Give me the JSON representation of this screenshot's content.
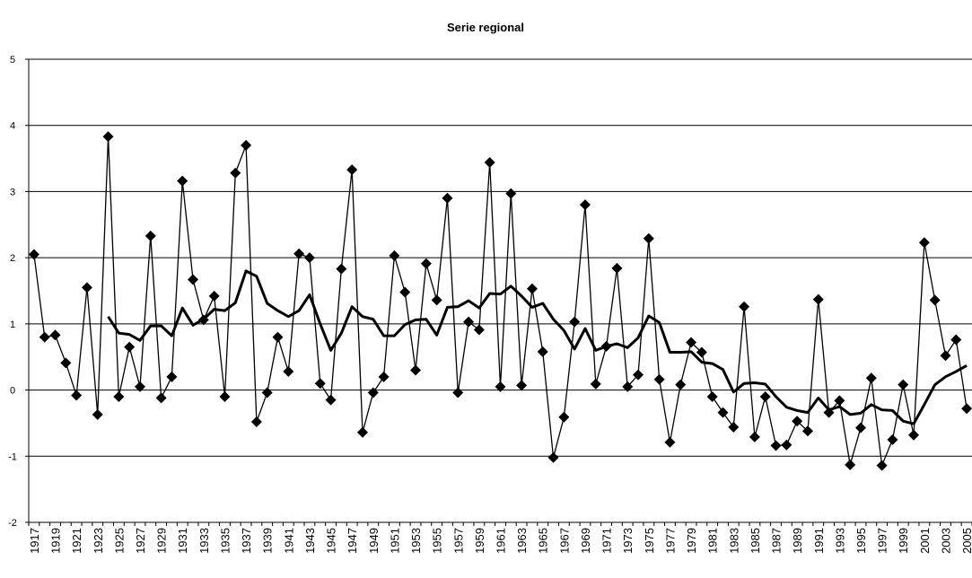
{
  "chart_data": {
    "type": "line",
    "title": "Serie regional",
    "categories": [
      "1917",
      null,
      "1919",
      null,
      "1921",
      null,
      "1923",
      null,
      "1925",
      null,
      "1927",
      null,
      "1929",
      null,
      "1931",
      null,
      "1933",
      null,
      "1935",
      null,
      "1937",
      null,
      "1939",
      null,
      "1941",
      null,
      "1943",
      null,
      "1945",
      null,
      "1947",
      null,
      "1949",
      null,
      "1951",
      null,
      "1953",
      null,
      "1955",
      null,
      "1957",
      null,
      "1959",
      null,
      "1961",
      null,
      "1963",
      null,
      "1965",
      null,
      "1967",
      null,
      "1969",
      null,
      "1971",
      null,
      "1973",
      null,
      "1975",
      null,
      "1977",
      null,
      "1979",
      null,
      "1981",
      null,
      "1983",
      null,
      "1985",
      null,
      "1987",
      null,
      "1989",
      null,
      "1991",
      null,
      "1993",
      null,
      "1995",
      null,
      "1997",
      null,
      "1999",
      null,
      "2001",
      null,
      "2003",
      null,
      "2005"
    ],
    "series": [
      {
        "color": "#000000",
        "marker": "diamond",
        "line_width": 1.3,
        "values": [
          2.05,
          0.8,
          0.83,
          0.41,
          -0.08,
          1.55,
          -0.37,
          3.83,
          -0.1,
          0.65,
          0.05,
          2.33,
          -0.12,
          0.2,
          3.16,
          1.67,
          1.06,
          1.42,
          -0.1,
          3.28,
          3.7,
          -0.48,
          -0.04,
          0.8,
          0.28,
          2.06,
          2.0,
          0.1,
          -0.15,
          1.83,
          3.33,
          -0.64,
          -0.04,
          0.2,
          2.03,
          1.48,
          0.3,
          1.91,
          1.36,
          2.9,
          -0.04,
          1.03,
          0.91,
          3.44,
          0.05,
          2.97,
          0.07,
          1.53,
          0.58,
          -1.02,
          -0.41,
          1.03,
          2.8,
          0.09,
          0.66,
          1.84,
          0.05,
          0.23,
          2.29,
          0.16,
          -0.79,
          0.08,
          0.72,
          0.57,
          -0.1,
          -0.34,
          -0.56,
          1.26,
          -0.71,
          -0.1,
          -0.84,
          -0.83,
          -0.47,
          -0.62,
          1.37,
          -0.34,
          -0.16,
          -1.13,
          -0.57,
          0.18,
          -1.14,
          -0.75,
          0.08,
          -0.68,
          2.23,
          1.36,
          0.52,
          0.76,
          -0.28
        ]
      },
      {
        "color": "#000000",
        "marker": "none",
        "line_width": 3,
        "values": [
          null,
          null,
          null,
          null,
          null,
          null,
          null,
          1.11,
          0.86,
          0.84,
          0.75,
          0.97,
          0.97,
          0.82,
          1.24,
          0.98,
          1.07,
          1.22,
          1.2,
          1.32,
          1.8,
          1.72,
          1.31,
          1.2,
          1.11,
          1.2,
          1.44,
          1.0,
          0.6,
          0.86,
          1.26,
          1.11,
          1.07,
          0.82,
          0.82,
          0.99,
          1.06,
          1.07,
          0.83,
          1.25,
          1.26,
          1.35,
          1.24,
          1.46,
          1.45,
          1.57,
          1.42,
          1.25,
          1.31,
          1.07,
          0.9,
          0.62,
          0.93,
          0.6,
          0.66,
          0.7,
          0.64,
          0.79,
          1.12,
          1.02,
          0.57,
          0.57,
          0.58,
          0.42,
          0.4,
          0.31,
          -0.03,
          0.1,
          0.11,
          0.09,
          -0.1,
          -0.26,
          -0.31,
          -0.34,
          -0.12,
          -0.3,
          -0.25,
          -0.37,
          -0.35,
          -0.22,
          -0.3,
          -0.31,
          -0.47,
          -0.51,
          -0.22,
          0.08,
          0.2,
          0.28,
          0.37
        ]
      }
    ],
    "ylim": [
      -2,
      5
    ],
    "yticks": [
      -2,
      -1,
      0,
      1,
      2,
      3,
      4,
      5
    ],
    "grid": true
  }
}
